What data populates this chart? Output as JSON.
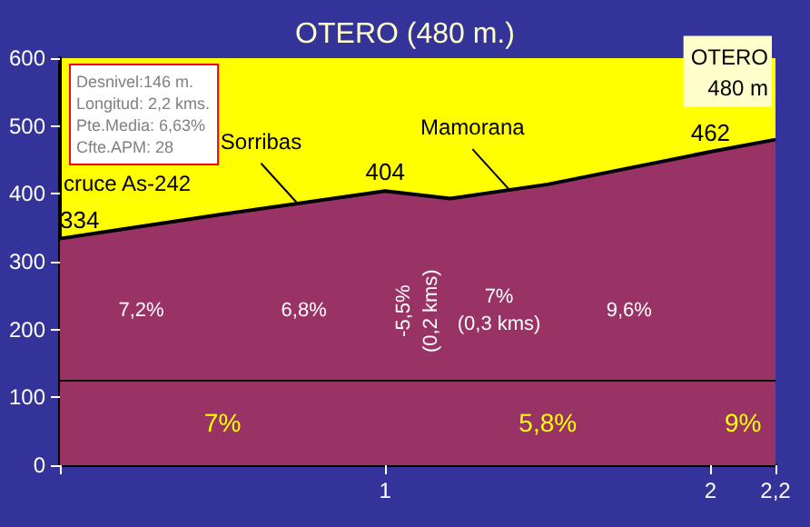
{
  "chart_data": {
    "type": "area",
    "title": "OTERO (480 m.)",
    "x": [
      0,
      0.5,
      1,
      1.2,
      1.5,
      2,
      2.2
    ],
    "values": [
      334,
      370,
      404,
      393,
      414,
      462,
      480
    ],
    "value_labels": [
      "334",
      null,
      "404",
      null,
      null,
      "462",
      null
    ],
    "color": "#993366",
    "xlim": [
      0,
      2.2
    ],
    "xticks": [
      {
        "value": 0,
        "label": null
      },
      1,
      2,
      {
        "value": 2.2,
        "label": "2,2"
      }
    ],
    "ylim": [
      0,
      600
    ],
    "yticks": [
      0,
      100,
      200,
      300,
      400,
      500,
      600
    ],
    "grid": false,
    "marker": "none",
    "ref_lines": [
      {
        "axis": "y",
        "value": 125,
        "color": "#000000"
      }
    ],
    "annotations": [
      "Desnivel:146 m.",
      "Longitud: 2,2 kms.",
      "Pte.Media: 6,63%",
      "Cfte.APM: 28",
      {
        "text": "cruce As-242",
        "x": 0,
        "y": 334
      },
      {
        "text": "Sorribas",
        "x": 0.73,
        "y": 386
      },
      {
        "text": "Mamorana",
        "x": 1.38,
        "y": 407
      },
      {
        "text": "OTERO\n480 m",
        "x": 2.2,
        "y": 480
      },
      "7,2%",
      "6,8%",
      "-5,5%\n(0,2 kms)",
      "7%\n(0,3 kms)",
      "9,6%",
      "7%",
      "5,8%",
      "9%"
    ]
  }
}
